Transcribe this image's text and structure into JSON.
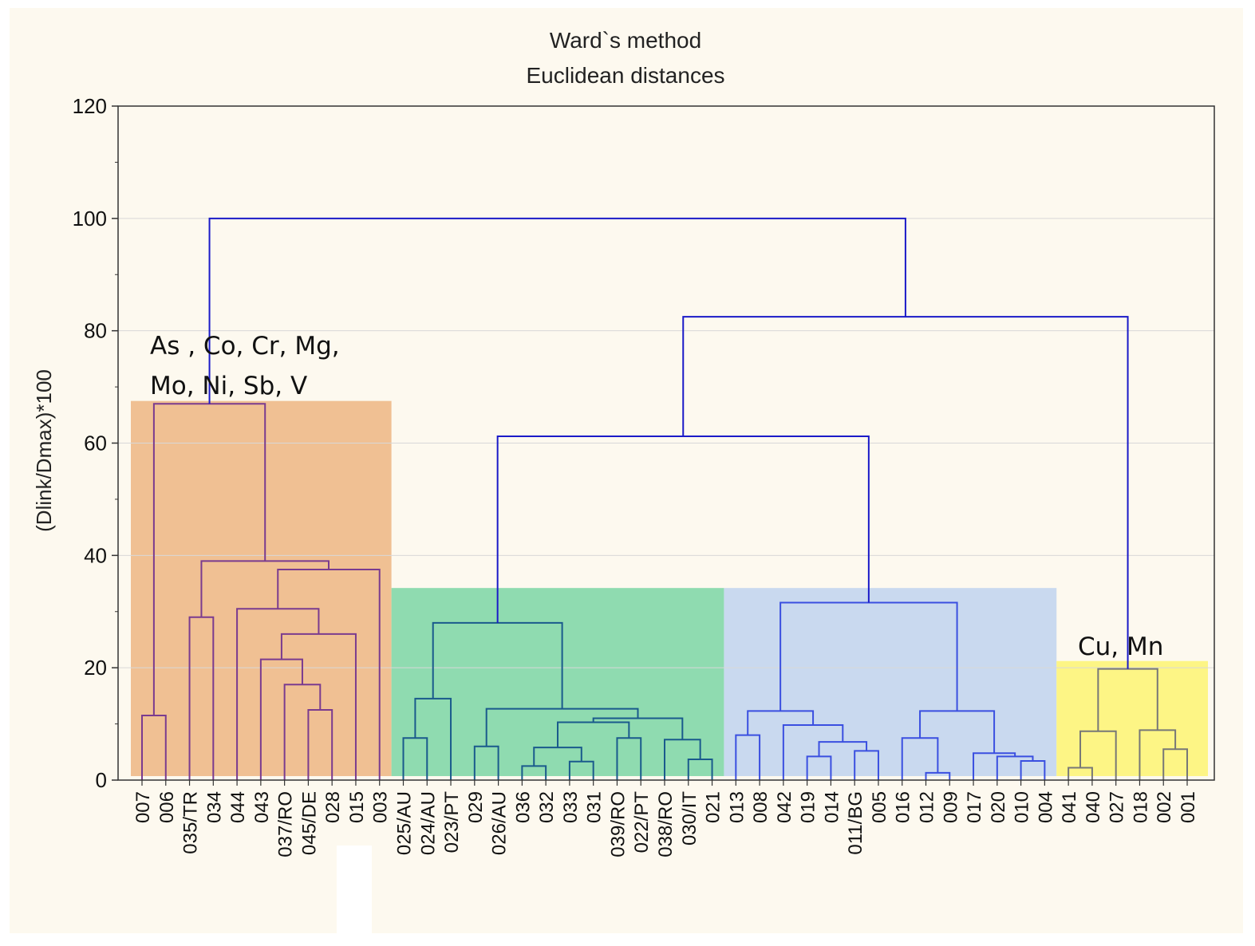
{
  "chart_data": {
    "type": "dendrogram",
    "title": "Ward`s method",
    "subtitle": "Euclidean distances",
    "ylabel": "(Dlink/Dmax)*100",
    "xlabel": "",
    "ylim": [
      0,
      120
    ],
    "yticks": [
      "0",
      "20",
      "40",
      "60",
      "80",
      "100",
      "120"
    ],
    "grid": true,
    "leaves": [
      "007",
      "006",
      "035/TR",
      "034",
      "044",
      "043",
      "037/RO",
      "045/DE",
      "028",
      "015",
      "003",
      "025/AU",
      "024/AU",
      "023/PT",
      "029",
      "026/AU",
      "036",
      "032",
      "033",
      "031",
      "039/RO",
      "022/PT",
      "038/RO",
      "030/IT",
      "021",
      "013",
      "008",
      "042",
      "019",
      "014",
      "011/BG",
      "005",
      "016",
      "012",
      "009",
      "017",
      "020",
      "010",
      "004",
      "041",
      "040",
      "027",
      "018",
      "002",
      "001"
    ],
    "merges": [
      {
        "left": "007",
        "right": "006",
        "height": 11.5
      },
      {
        "left": "035/TR",
        "right": "034",
        "height": 29
      },
      {
        "left": "045/DE",
        "right": "028",
        "height": 12.5
      },
      {
        "left": "037/RO",
        "right": "m3",
        "height": 17
      },
      {
        "left": "043",
        "right": "m4",
        "height": 21.5
      },
      {
        "left": "m5",
        "right": "015",
        "height": 26
      },
      {
        "left": "044",
        "right": "m6",
        "height": 30.5
      },
      {
        "left": "m7",
        "right": "003",
        "height": 37.5
      },
      {
        "left": "m2",
        "right": "m8",
        "height": 39
      },
      {
        "left": "m1",
        "right": "m9",
        "height": 67
      },
      {
        "left": "025/AU",
        "right": "024/AU",
        "height": 7.5
      },
      {
        "left": "m11",
        "right": "023/PT",
        "height": 14.5
      },
      {
        "left": "029",
        "right": "026/AU",
        "height": 6
      },
      {
        "left": "036",
        "right": "032",
        "height": 2.5
      },
      {
        "left": "033",
        "right": "031",
        "height": 3.3
      },
      {
        "left": "m14",
        "right": "m15",
        "height": 5.8
      },
      {
        "left": "039/RO",
        "right": "022/PT",
        "height": 7.5
      },
      {
        "left": "m16",
        "right": "m17",
        "height": 10.3
      },
      {
        "left": "030/IT",
        "right": "021",
        "height": 3.7
      },
      {
        "left": "038/RO",
        "right": "m19",
        "height": 7.2
      },
      {
        "left": "m18",
        "right": "m20",
        "height": 11
      },
      {
        "left": "m13",
        "right": "m21",
        "height": 12.7
      },
      {
        "left": "m12",
        "right": "m22",
        "height": 28
      },
      {
        "left": "013",
        "right": "008",
        "height": 8
      },
      {
        "left": "019",
        "right": "014",
        "height": 4.2
      },
      {
        "left": "011/BG",
        "right": "005",
        "height": 5.2
      },
      {
        "left": "m25",
        "right": "m26",
        "height": 6.8
      },
      {
        "left": "042",
        "right": "m27",
        "height": 9.8
      },
      {
        "left": "m24",
        "right": "m28",
        "height": 12.3
      },
      {
        "left": "012",
        "right": "009",
        "height": 1.3
      },
      {
        "left": "016",
        "right": "m30",
        "height": 7.5
      },
      {
        "left": "010",
        "right": "004",
        "height": 3.4
      },
      {
        "left": "020",
        "right": "m32",
        "height": 4.2
      },
      {
        "left": "017",
        "right": "m33",
        "height": 4.8
      },
      {
        "left": "m31",
        "right": "m34",
        "height": 12.3
      },
      {
        "left": "m29",
        "right": "m35",
        "height": 31.6
      },
      {
        "left": "m23",
        "right": "m36",
        "height": 61.2
      },
      {
        "left": "041",
        "right": "040",
        "height": 2.2
      },
      {
        "left": "m38",
        "right": "027",
        "height": 8.7
      },
      {
        "left": "002",
        "right": "001",
        "height": 5.5
      },
      {
        "left": "018",
        "right": "m40",
        "height": 8.9
      },
      {
        "left": "m39",
        "right": "m41",
        "height": 19.8
      },
      {
        "left": "m37",
        "right": "m42",
        "height": 82.5
      },
      {
        "left": "m10",
        "right": "m43",
        "height": 100
      }
    ],
    "clusters": [
      {
        "name": "orange",
        "from": "007",
        "to": "003",
        "top": 67.5,
        "color": "#f0c093",
        "label_lines": [
          "As ,  Co, Cr, Mg,",
          "Mo,      Ni, Sb, V"
        ]
      },
      {
        "name": "green",
        "from": "025/AU",
        "to": "021",
        "top": 34.2,
        "color": "#8fdbb0",
        "label_lines": []
      },
      {
        "name": "blue",
        "from": "013",
        "to": "004",
        "top": 34.2,
        "color": "#c9d9ef",
        "label_lines": []
      },
      {
        "name": "yellow",
        "from": "041",
        "to": "001",
        "top": 21.2,
        "color": "#fdf585",
        "label_lines": [
          "Cu,  Mn"
        ]
      }
    ],
    "colors": {
      "tree": "#1a1ac8",
      "orange_tree": "#7a3b8f",
      "green_tree": "#1a5a8c",
      "blue_tree": "#3a4fe0",
      "yellow_tree": "#777777"
    }
  }
}
